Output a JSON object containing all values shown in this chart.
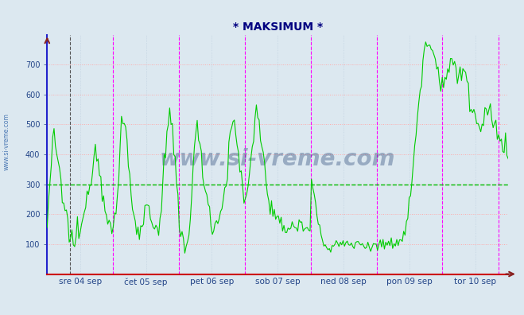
{
  "title": "* MAKSIMUM *",
  "title_color": "#000080",
  "bg_color": "#dce8f0",
  "plot_bg_color": "#dce8f0",
  "ylim": [
    0,
    800
  ],
  "yticks": [
    100,
    200,
    300,
    400,
    500,
    600,
    700
  ],
  "grid_color_h": "#ffaaaa",
  "grid_color_v": "#bbccdd",
  "dashed_line_color": "#00bb00",
  "dashed_line_y": 300,
  "xticklabels": [
    "sre 04 sep",
    "čet 05 sep",
    "pet 06 sep",
    "sob 07 sep",
    "ned 08 sep",
    "pon 09 sep",
    "tor 10 sep"
  ],
  "left_border_color": "#2222cc",
  "bottom_border_color": "#cc0000",
  "watermark": "www.si-vreme.com",
  "legend_temp_color": "#cc0000",
  "legend_flow_color": "#00cc00",
  "sidebar_text": "www.si-vreme.com",
  "sidebar_color": "#3366aa",
  "n_days": 7,
  "pts_per_day": 48
}
